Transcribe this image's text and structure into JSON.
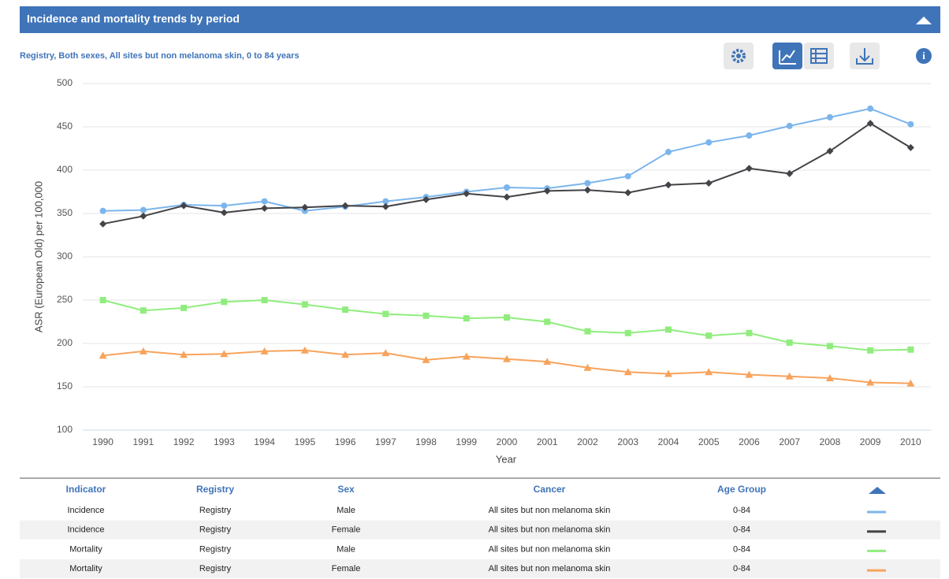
{
  "header": {
    "title": "Incidence and mortality trends by period"
  },
  "subtitle": "Registry, Both sexes, All sites but non melanoma skin, 0 to 84 years",
  "chart_data": {
    "type": "line",
    "x_label": "Year",
    "y_label": "ASR (European Old) per 100,000",
    "categories": [
      "1990",
      "1991",
      "1992",
      "1993",
      "1994",
      "1995",
      "1996",
      "1997",
      "1998",
      "1999",
      "2000",
      "2001",
      "2002",
      "2003",
      "2004",
      "2005",
      "2006",
      "2007",
      "2008",
      "2009",
      "2010"
    ],
    "ylim": [
      100,
      500
    ],
    "yticks": [
      100,
      150,
      200,
      250,
      300,
      350,
      400,
      450,
      500
    ],
    "grid": true,
    "series": [
      {
        "color": "#7cb5ec",
        "marker": "circle",
        "values": [
          353,
          354,
          360,
          359,
          364,
          353,
          358,
          364,
          369,
          375,
          380,
          379,
          385,
          393,
          421,
          432,
          440,
          451,
          461,
          471,
          453
        ]
      },
      {
        "color": "#434348",
        "marker": "diamond",
        "values": [
          338,
          347,
          359,
          351,
          356,
          357,
          359,
          358,
          366,
          373,
          369,
          376,
          377,
          374,
          383,
          385,
          402,
          396,
          422,
          454,
          426
        ]
      },
      {
        "color": "#90ed7d",
        "marker": "square",
        "values": [
          250,
          238,
          241,
          248,
          250,
          245,
          239,
          234,
          232,
          229,
          230,
          225,
          214,
          212,
          216,
          209,
          212,
          201,
          197,
          192,
          193
        ]
      },
      {
        "color": "#f7a35c",
        "marker": "triangle",
        "values": [
          186,
          191,
          187,
          188,
          191,
          192,
          187,
          189,
          181,
          185,
          182,
          179,
          172,
          167,
          165,
          167,
          164,
          162,
          160,
          155,
          154
        ]
      }
    ]
  },
  "table": {
    "headers": [
      "Indicator",
      "Registry",
      "Sex",
      "Cancer",
      "Age Group"
    ],
    "rows": [
      [
        "Incidence",
        "Registry",
        "Male",
        "All sites but non melanoma skin",
        "0-84"
      ],
      [
        "Incidence",
        "Registry",
        "Female",
        "All sites but non melanoma skin",
        "0-84"
      ],
      [
        "Mortality",
        "Registry",
        "Male",
        "All sites but non melanoma skin",
        "0-84"
      ],
      [
        "Mortality",
        "Registry",
        "Female",
        "All sites but non melanoma skin",
        "0-84"
      ]
    ]
  }
}
